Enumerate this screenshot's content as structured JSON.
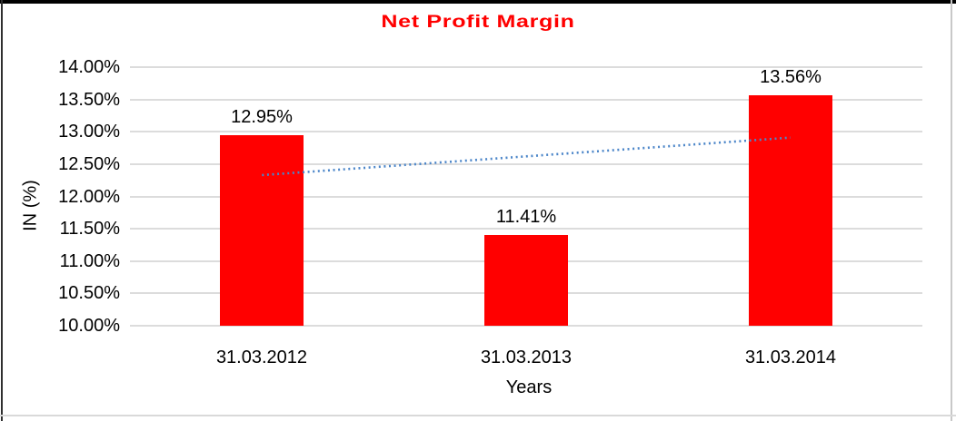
{
  "frame": {
    "background": "#ffffff",
    "top_border_color": "#000000",
    "left_border_color": "#2f2f2f",
    "right_border_color": "#c8c8c8",
    "bottom_border_color": "#d9d9d9"
  },
  "chart_data": {
    "type": "bar",
    "title": "Net Profit Margin",
    "title_color": "#ff0000",
    "xlabel": "Years",
    "ylabel": "IN (%)",
    "categories": [
      "31.03.2012",
      "31.03.2013",
      "31.03.2014"
    ],
    "values": [
      12.95,
      11.41,
      13.56
    ],
    "data_labels": [
      "12.95%",
      "11.41%",
      "13.56%"
    ],
    "bar_color": "#ff0000",
    "ylim": [
      10,
      14
    ],
    "ytick_step": 0.5,
    "ytick_labels": [
      "10.00%",
      "10.50%",
      "11.00%",
      "11.50%",
      "12.00%",
      "12.50%",
      "13.00%",
      "13.50%",
      "14.00%"
    ],
    "grid": true,
    "gridline_color": "#dcdcdc",
    "legend_position": "none",
    "text_color": "#000000",
    "trendline": {
      "type": "linear",
      "style": "dotted",
      "color": "#4c86c9",
      "start_value": 12.33,
      "end_value": 12.91
    }
  }
}
